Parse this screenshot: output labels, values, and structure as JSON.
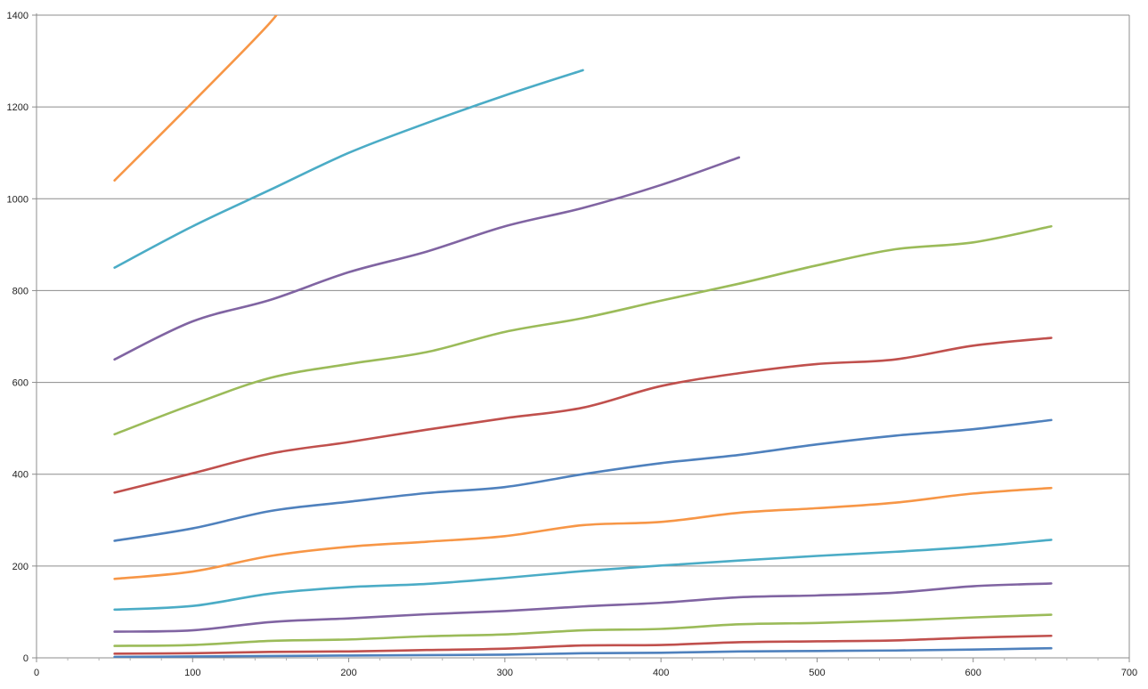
{
  "chart_data": {
    "type": "line",
    "title": "",
    "xlabel": "",
    "ylabel": "",
    "xlim": [
      0,
      700
    ],
    "ylim": [
      0,
      1400
    ],
    "x_ticks": [
      0,
      100,
      200,
      300,
      400,
      500,
      600,
      700
    ],
    "y_ticks": [
      0,
      200,
      400,
      600,
      800,
      1000,
      1200,
      1400
    ],
    "x_tick_labels": [
      "0",
      "100",
      "200",
      "300",
      "400",
      "500",
      "600",
      "700"
    ],
    "y_tick_labels": [
      "0",
      "200",
      "400",
      "600",
      "800",
      "1000",
      "1200",
      "1400"
    ],
    "grid": "horizontal",
    "legend": "none",
    "series": [
      {
        "color": "#4f81bd",
        "x": [
          50,
          100,
          150,
          200,
          250,
          300,
          350,
          400,
          450,
          500,
          550,
          600,
          650
        ],
        "y": [
          2,
          3,
          4,
          5,
          6,
          7,
          10,
          11,
          14,
          15,
          16,
          18,
          21
        ]
      },
      {
        "color": "#c0504d",
        "x": [
          50,
          100,
          150,
          200,
          250,
          300,
          350,
          400,
          450,
          500,
          550,
          600,
          650
        ],
        "y": [
          9,
          10,
          13,
          14,
          17,
          20,
          27,
          28,
          34,
          36,
          38,
          44,
          48
        ]
      },
      {
        "color": "#9bbb59",
        "x": [
          50,
          100,
          150,
          200,
          250,
          300,
          350,
          400,
          450,
          500,
          550,
          600,
          650
        ],
        "y": [
          26,
          28,
          37,
          40,
          47,
          51,
          60,
          63,
          73,
          76,
          81,
          88,
          94
        ]
      },
      {
        "color": "#8064a2",
        "x": [
          50,
          100,
          150,
          200,
          250,
          300,
          350,
          400,
          450,
          500,
          550,
          600,
          650
        ],
        "y": [
          57,
          60,
          78,
          86,
          95,
          102,
          112,
          120,
          132,
          136,
          142,
          156,
          162
        ]
      },
      {
        "color": "#4bacc6",
        "x": [
          50,
          100,
          150,
          200,
          250,
          300,
          350,
          400,
          450,
          500,
          550,
          600,
          650
        ],
        "y": [
          105,
          113,
          140,
          154,
          161,
          174,
          189,
          201,
          212,
          222,
          231,
          242,
          257
        ]
      },
      {
        "color": "#f79646",
        "x": [
          50,
          100,
          150,
          200,
          250,
          300,
          350,
          400,
          450,
          500,
          550,
          600,
          650
        ],
        "y": [
          172,
          188,
          222,
          242,
          253,
          265,
          289,
          296,
          316,
          326,
          338,
          358,
          370
        ]
      },
      {
        "color": "#4f81bd",
        "x": [
          50,
          100,
          150,
          200,
          250,
          300,
          350,
          400,
          450,
          500,
          550,
          600,
          650
        ],
        "y": [
          255,
          282,
          320,
          340,
          359,
          372,
          400,
          424,
          442,
          465,
          484,
          498,
          518
        ]
      },
      {
        "color": "#c0504d",
        "x": [
          50,
          100,
          150,
          200,
          250,
          300,
          350,
          400,
          450,
          500,
          550,
          600,
          650
        ],
        "y": [
          360,
          402,
          445,
          470,
          497,
          522,
          545,
          592,
          620,
          640,
          650,
          680,
          697
        ]
      },
      {
        "color": "#9bbb59",
        "x": [
          50,
          100,
          150,
          200,
          250,
          300,
          350,
          400,
          450,
          500,
          550,
          600,
          650
        ],
        "y": [
          487,
          552,
          610,
          640,
          666,
          710,
          740,
          778,
          815,
          855,
          890,
          905,
          940
        ]
      },
      {
        "color": "#8064a2",
        "x": [
          50,
          100,
          150,
          200,
          250,
          300,
          350,
          400,
          450
        ],
        "y": [
          650,
          733,
          780,
          840,
          885,
          940,
          980,
          1030,
          1090
        ]
      },
      {
        "color": "#4bacc6",
        "x": [
          50,
          100,
          150,
          200,
          250,
          300,
          350
        ],
        "y": [
          850,
          940,
          1020,
          1100,
          1165,
          1225,
          1280
        ]
      },
      {
        "color": "#f79646",
        "x": [
          50,
          100,
          150,
          160
        ],
        "y": [
          1040,
          1210,
          1385,
          1440
        ]
      }
    ]
  }
}
